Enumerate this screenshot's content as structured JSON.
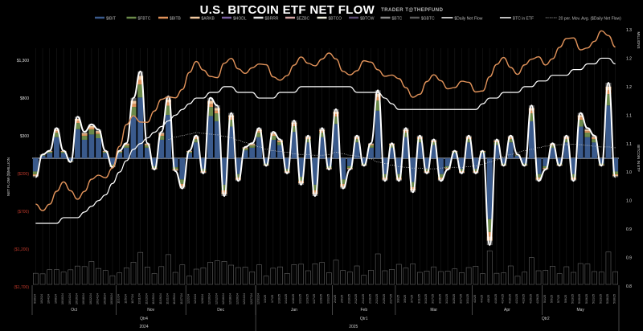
{
  "header": {
    "title": "U.S. BITCOIN ETF NET FLOW",
    "subtitle": "TRADER T@THEPFUND"
  },
  "chart_data": {
    "type": "bar",
    "title": "U.S. BITCOIN ETF NET FLOW",
    "subtitle": "TRADER T@THEPFUND",
    "ylabel": "NET FLOW ($)MILLION",
    "y2label": "BITCOIN IN ETF",
    "y3label": "MILLIONS",
    "ylim": [
      -1700,
      1300
    ],
    "y_ticks": [
      "$1,300",
      "$800",
      "$300",
      "($200)",
      "($700)",
      "($1,200)",
      "($1,700)"
    ],
    "y_tick_values": [
      1300,
      800,
      300,
      -200,
      -700,
      -1200,
      -1700
    ],
    "y2_ticks": [
      "1.3",
      "1.2",
      "1.2",
      "1.1",
      "1.1",
      "1.0",
      "1.0",
      "0.9",
      "0.9",
      "0.8"
    ],
    "y2_tick_values": [
      1.3,
      1.25,
      1.2,
      1.15,
      1.1,
      1.05,
      1.0,
      0.95,
      0.9,
      0.85
    ],
    "legend_position": "top",
    "legend": [
      {
        "name": "$IBIT",
        "color": "#3a5a8c",
        "style": "bar"
      },
      {
        "name": "$FBTC",
        "color": "#6b8a4a",
        "style": "bar"
      },
      {
        "name": "$BITB",
        "color": "#e0925a",
        "style": "bar"
      },
      {
        "name": "$ARKB",
        "color": "#f2c9a0",
        "style": "bar"
      },
      {
        "name": "$HODL",
        "color": "#7a5fa0",
        "style": "bar"
      },
      {
        "name": "$BRRR",
        "color": "#e8e8e8",
        "style": "bar"
      },
      {
        "name": "$EZBC",
        "color": "#d4a5a5",
        "style": "bar"
      },
      {
        "name": "$BTCO",
        "color": "#f0f0e0",
        "style": "bar"
      },
      {
        "name": "$BTCW",
        "color": "#5a4a70",
        "style": "bar"
      },
      {
        "name": "$BTC",
        "color": "#8a8a8a",
        "style": "bar"
      },
      {
        "name": "$GBTC",
        "color": "#5a5a5a",
        "style": "bar"
      },
      {
        "name": "$Daily Net Flow",
        "color": "#ffffff",
        "style": "line"
      },
      {
        "name": "BTC in ETF",
        "color": "#ffffff",
        "style": "line"
      },
      {
        "name": "20 per. Mov. Avg. ($Daily Net Flow)",
        "color": "#cccccc",
        "style": "dotted"
      }
    ],
    "months": [
      "Oct",
      "Nov",
      "Dec",
      "Jan",
      "Feb",
      "Mar",
      "Apr",
      "May"
    ],
    "quarters": [
      "Qtr4",
      "Qtr1",
      "Qtr2"
    ],
    "years": [
      "2024",
      "2025"
    ],
    "x_labels": [
      "9/30/24",
      "10/2/24",
      "10/4/24",
      "10/8/24",
      "10/10/24",
      "10/14/24",
      "10/16/24",
      "10/18/24",
      "10/22/24",
      "10/24/24",
      "10/28/24",
      "10/30/24",
      "11/1/24",
      "11/5/24",
      "11/7/24",
      "11/11/24",
      "11/13/24",
      "11/15/24",
      "11/19/24",
      "11/21/24",
      "11/25/24",
      "11/27/24",
      "12/2/24",
      "12/4/24",
      "12/6/24",
      "12/10/24",
      "12/12/24",
      "12/16/24",
      "12/18/24",
      "12/20/24",
      "12/24/24",
      "12/27/24",
      "12/31/24",
      "1/3/25",
      "1/7/25",
      "1/10/25",
      "1/14/25",
      "1/16/25",
      "1/21/25",
      "1/23/25",
      "1/27/25",
      "1/29/25",
      "1/31/25",
      "2/4/25",
      "2/6/25",
      "2/10/25",
      "2/12/25",
      "2/14/25",
      "2/19/25",
      "2/21/25",
      "2/25/25",
      "2/27/25",
      "3/3/25",
      "3/5/25",
      "3/7/25",
      "3/11/25",
      "3/13/25",
      "3/17/25",
      "3/19/25",
      "3/21/25",
      "3/25/25",
      "3/27/25",
      "3/31/25",
      "4/2/25",
      "4/4/25",
      "4/8/25",
      "4/10/25",
      "4/14/25",
      "4/16/25",
      "4/21/25",
      "4/23/25",
      "4/25/25",
      "4/29/25",
      "5/1/25",
      "5/5/25",
      "5/7/25",
      "5/9/25",
      "5/13/25",
      "5/15/25",
      "5/19/25",
      "5/21/25",
      "5/23/25",
      "5/28/25",
      "5/30/25"
    ],
    "daily_net_flow": [
      -250,
      50,
      100,
      400,
      100,
      -50,
      550,
      350,
      450,
      380,
      100,
      -120,
      100,
      200,
      800,
      1150,
      200,
      -150,
      350,
      820,
      -170,
      -400,
      100,
      300,
      -200,
      800,
      700,
      -500,
      600,
      -300,
      150,
      200,
      400,
      -100,
      350,
      250,
      -200,
      500,
      -350,
      300,
      -500,
      400,
      -150,
      650,
      -400,
      -150,
      300,
      -100,
      200,
      900,
      -300,
      200,
      -300,
      400,
      -450,
      300,
      -200,
      250,
      -300,
      -150,
      100,
      -200,
      300,
      -200,
      100,
      -1150,
      250,
      -100,
      300,
      50,
      -100,
      700,
      -300,
      -150,
      200,
      -100,
      300,
      -300,
      600,
      400,
      300,
      -100,
      1000,
      -250
    ],
    "btc_in_etf_millions": [
      0.96,
      0.96,
      0.96,
      0.96,
      0.97,
      0.97,
      0.97,
      0.98,
      0.99,
      1.0,
      1.01,
      1.03,
      1.05,
      1.07,
      1.09,
      1.1,
      1.11,
      1.12,
      1.13,
      1.14,
      1.15,
      1.16,
      1.17,
      1.18,
      1.18,
      1.19,
      1.19,
      1.2,
      1.2,
      1.19,
      1.19,
      1.19,
      1.18,
      1.18,
      1.18,
      1.19,
      1.19,
      1.19,
      1.2,
      1.2,
      1.2,
      1.2,
      1.2,
      1.2,
      1.2,
      1.2,
      1.19,
      1.19,
      1.19,
      1.19,
      1.18,
      1.17,
      1.16,
      1.16,
      1.16,
      1.16,
      1.16,
      1.16,
      1.16,
      1.16,
      1.16,
      1.16,
      1.16,
      1.16,
      1.17,
      1.18,
      1.18,
      1.19,
      1.19,
      1.19,
      1.2,
      1.2,
      1.21,
      1.21,
      1.22,
      1.22,
      1.22,
      1.23,
      1.23,
      1.24,
      1.24,
      1.25,
      1.25,
      1.24
    ],
    "btc_price_line_note": "orange line",
    "moving_average_20": [
      null,
      null,
      null,
      null,
      null,
      null,
      null,
      null,
      null,
      null,
      null,
      null,
      null,
      null,
      null,
      null,
      null,
      null,
      null,
      250,
      280,
      300,
      320,
      340,
      330,
      320,
      310,
      290,
      270,
      240,
      210,
      180,
      150,
      120,
      100,
      90,
      80,
      60,
      50,
      50,
      40,
      40,
      50,
      80,
      60,
      40,
      30,
      10,
      -10,
      -50,
      -70,
      -90,
      -110,
      -120,
      -130,
      -130,
      -140,
      -140,
      -130,
      -120,
      -120,
      -120,
      -110,
      -100,
      -80,
      -50,
      -20,
      20,
      50,
      80,
      100,
      120,
      140,
      160,
      170,
      180,
      180,
      185,
      180,
      170,
      160,
      150,
      150,
      140
    ],
    "volume_note": "bottom gray bars represent trading volume"
  }
}
